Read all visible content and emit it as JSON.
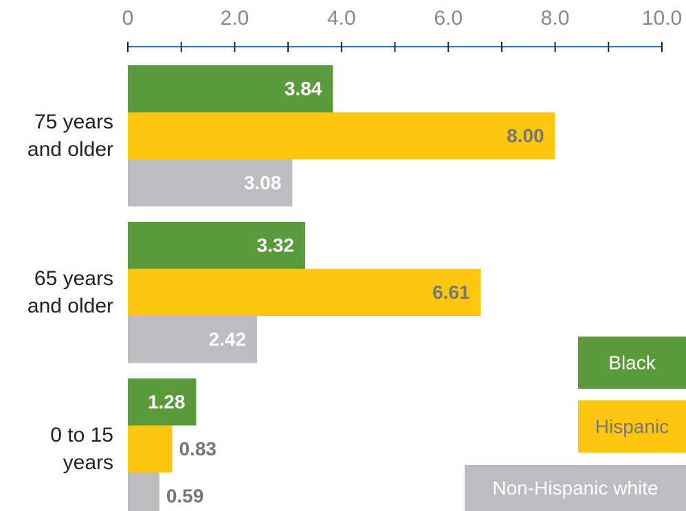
{
  "chart_data": {
    "type": "hbar",
    "categories": [
      "75 years and older",
      "65 years and older",
      "0 to 15 years"
    ],
    "series": [
      {
        "name": "Black",
        "color": "#5a9a3a",
        "values": [
          3.84,
          3.32,
          1.28
        ],
        "value_labels": [
          "3.84",
          "3.32",
          "1.28"
        ]
      },
      {
        "name": "Hispanic",
        "color": "#fcc70e",
        "values": [
          8.0,
          6.61,
          0.83
        ],
        "value_labels": [
          "8.00",
          "6.61",
          "0.83"
        ]
      },
      {
        "name": "Non-Hispanic white",
        "color": "#bcbdc0",
        "values": [
          3.08,
          2.42,
          0.59
        ],
        "value_labels": [
          "3.08",
          "2.42",
          "0.59"
        ]
      }
    ],
    "xlim": [
      0,
      10
    ],
    "xticks": [
      0,
      {
        "value": 2,
        "label": "2.0"
      },
      {
        "value": 4,
        "label": "4.0"
      },
      {
        "value": 6,
        "label": "6.0"
      },
      {
        "value": 8,
        "label": "8.0"
      },
      {
        "value": 10,
        "label": "10.0"
      }
    ],
    "minor_xticks": [
      1,
      3,
      5,
      7,
      9
    ],
    "axis_color": "#3a6fa0",
    "legend": "bottom-right"
  }
}
